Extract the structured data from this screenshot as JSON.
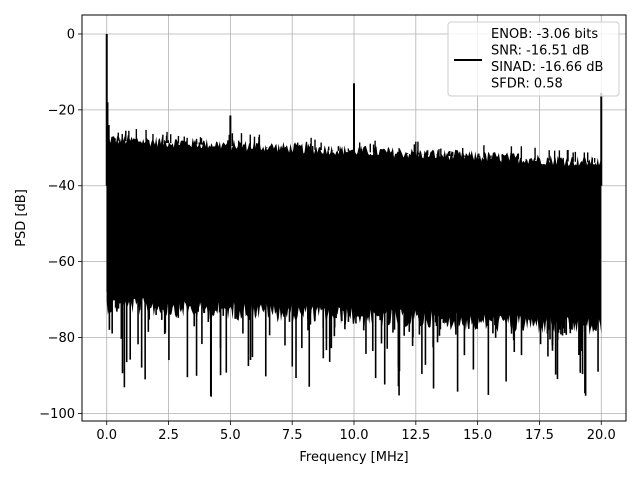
{
  "chart_data": {
    "type": "line",
    "xlabel": "Frequency [MHz]",
    "ylabel": "PSD [dB]",
    "xlim": [
      -1.0,
      21.0
    ],
    "ylim": [
      -102,
      5
    ],
    "xticks": [
      0.0,
      2.5,
      5.0,
      7.5,
      10.0,
      12.5,
      15.0,
      17.5,
      20.0
    ],
    "xtick_labels": [
      "0.0",
      "2.5",
      "5.0",
      "7.5",
      "10.0",
      "12.5",
      "15.0",
      "17.5",
      "20.0"
    ],
    "yticks": [
      0,
      -20,
      -40,
      -60,
      -80,
      -100
    ],
    "ytick_labels": [
      "0",
      "−20",
      "−40",
      "−60",
      "−80",
      "−100"
    ],
    "grid": true,
    "legend_placement": "upper-right",
    "series": [
      {
        "color": "#000000",
        "legend_lines": [
          "ENOB: -3.06 bits",
          "SNR: -16.51 dB",
          "SINAD: -16.66 dB",
          "SFDR: 0.58"
        ],
        "noise_band": {
          "x_range": [
            0.0,
            20.0
          ],
          "upper_start": -28,
          "upper_end": -34,
          "lower_start": -69,
          "lower_end": -75,
          "deep_dip_min": -97
        },
        "peaks": [
          {
            "x": 0.0,
            "y": 0.0
          },
          {
            "x": 5.0,
            "y": -21.5
          },
          {
            "x": 10.0,
            "y": -13.0
          },
          {
            "x": 20.0,
            "y": -15.5
          }
        ]
      }
    ]
  }
}
